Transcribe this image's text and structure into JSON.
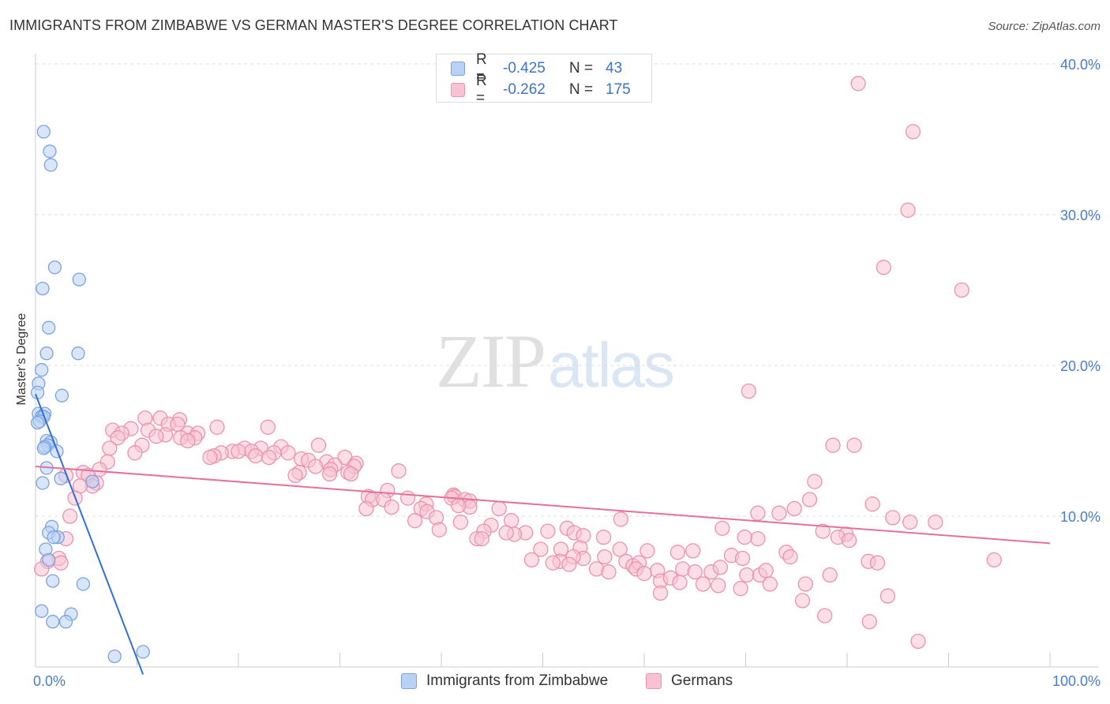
{
  "chart_data": {
    "type": "scatter",
    "title": "IMMIGRANTS FROM ZIMBABWE VS GERMAN MASTER'S DEGREE CORRELATION CHART",
    "source": "Source: ZipAtlas.com",
    "xlabel": "",
    "ylabel": "Master's Degree",
    "xlim": [
      0,
      100
    ],
    "ylim": [
      0,
      40
    ],
    "x_ticks": [
      "0.0%",
      "100.0%"
    ],
    "y_ticks": [
      {
        "value": 10,
        "label": "10.0%"
      },
      {
        "value": 20,
        "label": "20.0%"
      },
      {
        "value": 30,
        "label": "30.0%"
      },
      {
        "value": 40,
        "label": "40.0%"
      }
    ],
    "watermark": {
      "zip": "ZIP",
      "atlas": "atlas"
    },
    "legend": [
      {
        "r_label": "R =",
        "r_value": "-0.425",
        "n_label": "N =",
        "n_value": "43"
      },
      {
        "r_label": "R =",
        "r_value": "-0.262",
        "n_label": "N =",
        "n_value": "175"
      }
    ],
    "series": [
      {
        "name": "Immigrants from Zimbabwe",
        "fill": "#b9d1f5",
        "stroke": "#7aa3df",
        "line_color": "#2f6fd6",
        "trend": {
          "x0": 0,
          "y0": 18.1,
          "x1": 10.6,
          "y1": -0.5
        },
        "points": [
          [
            0.8,
            35.5
          ],
          [
            1.4,
            34.2
          ],
          [
            1.5,
            33.3
          ],
          [
            1.9,
            26.5
          ],
          [
            4.3,
            25.7
          ],
          [
            0.7,
            25.1
          ],
          [
            1.3,
            22.5
          ],
          [
            1.1,
            20.8
          ],
          [
            4.2,
            20.8
          ],
          [
            0.6,
            19.7
          ],
          [
            0.3,
            18.8
          ],
          [
            0.2,
            18.2
          ],
          [
            2.6,
            18.0
          ],
          [
            0.3,
            16.8
          ],
          [
            0.9,
            16.8
          ],
          [
            0.6,
            16.6
          ],
          [
            0.8,
            16.6
          ],
          [
            0.4,
            16.3
          ],
          [
            0.2,
            16.2
          ],
          [
            1.1,
            15.0
          ],
          [
            1.5,
            14.9
          ],
          [
            1.2,
            14.7
          ],
          [
            0.9,
            14.6
          ],
          [
            0.8,
            14.5
          ],
          [
            2.1,
            14.3
          ],
          [
            1.1,
            13.2
          ],
          [
            2.5,
            12.5
          ],
          [
            0.7,
            12.2
          ],
          [
            5.6,
            12.3
          ],
          [
            1.6,
            9.3
          ],
          [
            1.3,
            8.9
          ],
          [
            2.2,
            8.6
          ],
          [
            1.8,
            8.6
          ],
          [
            1.0,
            7.8
          ],
          [
            1.3,
            7.1
          ],
          [
            1.7,
            5.7
          ],
          [
            4.7,
            5.5
          ],
          [
            3.5,
            3.5
          ],
          [
            1.7,
            3.0
          ],
          [
            3.0,
            3.0
          ],
          [
            0.6,
            3.7
          ],
          [
            7.8,
            0.7
          ],
          [
            10.6,
            1.0
          ]
        ]
      },
      {
        "name": "Germans",
        "fill": "#f8c2d2",
        "stroke": "#ec92ad",
        "line_color": "#e5709b",
        "trend": {
          "x0": 0,
          "y0": 13.3,
          "x1": 100,
          "y1": 8.2
        },
        "points": [
          [
            81.1,
            38.7
          ],
          [
            86.5,
            35.5
          ],
          [
            86.0,
            30.3
          ],
          [
            83.6,
            26.5
          ],
          [
            91.3,
            25.0
          ],
          [
            70.3,
            18.3
          ],
          [
            10.8,
            16.5
          ],
          [
            12.3,
            16.5
          ],
          [
            14.2,
            16.4
          ],
          [
            13.1,
            16.1
          ],
          [
            14.0,
            16.1
          ],
          [
            9.4,
            15.8
          ],
          [
            11.1,
            15.7
          ],
          [
            7.6,
            15.7
          ],
          [
            15.0,
            15.5
          ],
          [
            12.8,
            15.4
          ],
          [
            17.9,
            15.9
          ],
          [
            8.5,
            15.5
          ],
          [
            16.0,
            15.5
          ],
          [
            11.9,
            15.3
          ],
          [
            8.1,
            15.2
          ],
          [
            14.3,
            15.2
          ],
          [
            15.7,
            15.2
          ],
          [
            15.0,
            15.0
          ],
          [
            22.9,
            15.9
          ],
          [
            10.5,
            14.7
          ],
          [
            7.3,
            14.5
          ],
          [
            24.2,
            14.6
          ],
          [
            27.9,
            14.7
          ],
          [
            20.6,
            14.5
          ],
          [
            22.2,
            14.5
          ],
          [
            19.4,
            14.3
          ],
          [
            21.3,
            14.3
          ],
          [
            20.0,
            14.3
          ],
          [
            23.5,
            14.2
          ],
          [
            24.9,
            14.2
          ],
          [
            18.3,
            14.2
          ],
          [
            9.8,
            14.2
          ],
          [
            17.6,
            14.0
          ],
          [
            21.7,
            14.0
          ],
          [
            17.2,
            13.9
          ],
          [
            23.0,
            13.9
          ],
          [
            30.5,
            13.9
          ],
          [
            26.2,
            13.8
          ],
          [
            26.9,
            13.7
          ],
          [
            28.7,
            13.6
          ],
          [
            31.6,
            13.5
          ],
          [
            7.1,
            13.6
          ],
          [
            29.5,
            13.4
          ],
          [
            27.6,
            13.3
          ],
          [
            31.4,
            13.3
          ],
          [
            29.1,
            13.1
          ],
          [
            6.3,
            13.1
          ],
          [
            4.7,
            12.9
          ],
          [
            26.0,
            12.9
          ],
          [
            30.8,
            12.9
          ],
          [
            35.8,
            13.0
          ],
          [
            29.0,
            12.8
          ],
          [
            31.1,
            12.8
          ],
          [
            25.6,
            12.7
          ],
          [
            5.2,
            12.7
          ],
          [
            3.0,
            12.7
          ],
          [
            6.0,
            12.2
          ],
          [
            5.6,
            12.0
          ],
          [
            4.4,
            12.0
          ],
          [
            34.7,
            11.7
          ],
          [
            41.2,
            11.4
          ],
          [
            32.8,
            11.3
          ],
          [
            41.3,
            11.3
          ],
          [
            33.2,
            11.1
          ],
          [
            34.3,
            11.1
          ],
          [
            36.7,
            11.2
          ],
          [
            41.0,
            11.2
          ],
          [
            42.3,
            11.1
          ],
          [
            42.8,
            11.0
          ],
          [
            3.9,
            11.2
          ],
          [
            38.5,
            10.8
          ],
          [
            38.0,
            10.5
          ],
          [
            35.1,
            10.6
          ],
          [
            42.8,
            10.6
          ],
          [
            41.7,
            10.7
          ],
          [
            32.6,
            10.5
          ],
          [
            45.7,
            10.5
          ],
          [
            38.6,
            10.3
          ],
          [
            39.5,
            9.9
          ],
          [
            3.4,
            10.0
          ],
          [
            37.4,
            9.7
          ],
          [
            46.9,
            9.7
          ],
          [
            41.9,
            9.6
          ],
          [
            44.9,
            9.4
          ],
          [
            57.7,
            9.8
          ],
          [
            52.4,
            9.2
          ],
          [
            50.5,
            9.0
          ],
          [
            44.2,
            9.0
          ],
          [
            67.7,
            9.2
          ],
          [
            39.8,
            9.1
          ],
          [
            48.3,
            8.9
          ],
          [
            47.2,
            8.8
          ],
          [
            46.4,
            8.9
          ],
          [
            53.1,
            8.9
          ],
          [
            43.5,
            8.5
          ],
          [
            71.2,
            8.5
          ],
          [
            44.0,
            8.5
          ],
          [
            56.0,
            8.6
          ],
          [
            54.0,
            8.7
          ],
          [
            69.9,
            8.6
          ],
          [
            3.0,
            8.5
          ],
          [
            49.8,
            7.8
          ],
          [
            51.8,
            7.8
          ],
          [
            53.7,
            7.9
          ],
          [
            54.0,
            7.2
          ],
          [
            53.0,
            7.3
          ],
          [
            56.1,
            7.3
          ],
          [
            57.6,
            7.8
          ],
          [
            58.2,
            7.0
          ],
          [
            60.3,
            7.7
          ],
          [
            64.8,
            7.7
          ],
          [
            63.3,
            7.6
          ],
          [
            68.6,
            7.4
          ],
          [
            69.7,
            7.2
          ],
          [
            74.0,
            7.6
          ],
          [
            74.4,
            7.3
          ],
          [
            2.3,
            7.2
          ],
          [
            2.5,
            6.9
          ],
          [
            1.2,
            7.0
          ],
          [
            51.7,
            7.0
          ],
          [
            52.6,
            6.8
          ],
          [
            55.3,
            6.5
          ],
          [
            58.9,
            6.7
          ],
          [
            59.5,
            6.9
          ],
          [
            56.5,
            6.3
          ],
          [
            59.2,
            6.5
          ],
          [
            61.3,
            6.4
          ],
          [
            63.8,
            6.5
          ],
          [
            65.0,
            6.3
          ],
          [
            66.6,
            6.3
          ],
          [
            67.5,
            6.6
          ],
          [
            70.1,
            6.1
          ],
          [
            71.4,
            6.1
          ],
          [
            72.0,
            6.4
          ],
          [
            0.6,
            6.5
          ],
          [
            60.0,
            6.2
          ],
          [
            61.6,
            5.7
          ],
          [
            62.6,
            5.9
          ],
          [
            63.5,
            5.6
          ],
          [
            65.8,
            5.5
          ],
          [
            67.3,
            5.4
          ],
          [
            69.5,
            5.2
          ],
          [
            72.4,
            5.5
          ],
          [
            75.9,
            5.5
          ],
          [
            78.3,
            6.1
          ],
          [
            82.1,
            7.0
          ],
          [
            83.0,
            6.9
          ],
          [
            86.2,
            9.6
          ],
          [
            82.5,
            10.8
          ],
          [
            71.2,
            10.2
          ],
          [
            73.3,
            10.2
          ],
          [
            74.8,
            10.5
          ],
          [
            76.3,
            11.1
          ],
          [
            76.8,
            12.3
          ],
          [
            77.6,
            9.0
          ],
          [
            79.9,
            8.8
          ],
          [
            79.1,
            8.6
          ],
          [
            80.2,
            8.4
          ],
          [
            78.6,
            14.7
          ],
          [
            80.7,
            14.7
          ],
          [
            84.5,
            9.9
          ],
          [
            88.7,
            9.6
          ],
          [
            94.5,
            7.1
          ],
          [
            84.0,
            4.7
          ],
          [
            75.6,
            4.4
          ],
          [
            77.8,
            3.4
          ],
          [
            82.2,
            3.0
          ],
          [
            87.0,
            1.7
          ],
          [
            61.6,
            4.9
          ],
          [
            48.9,
            7.1
          ],
          [
            51.0,
            6.9
          ]
        ]
      }
    ]
  }
}
